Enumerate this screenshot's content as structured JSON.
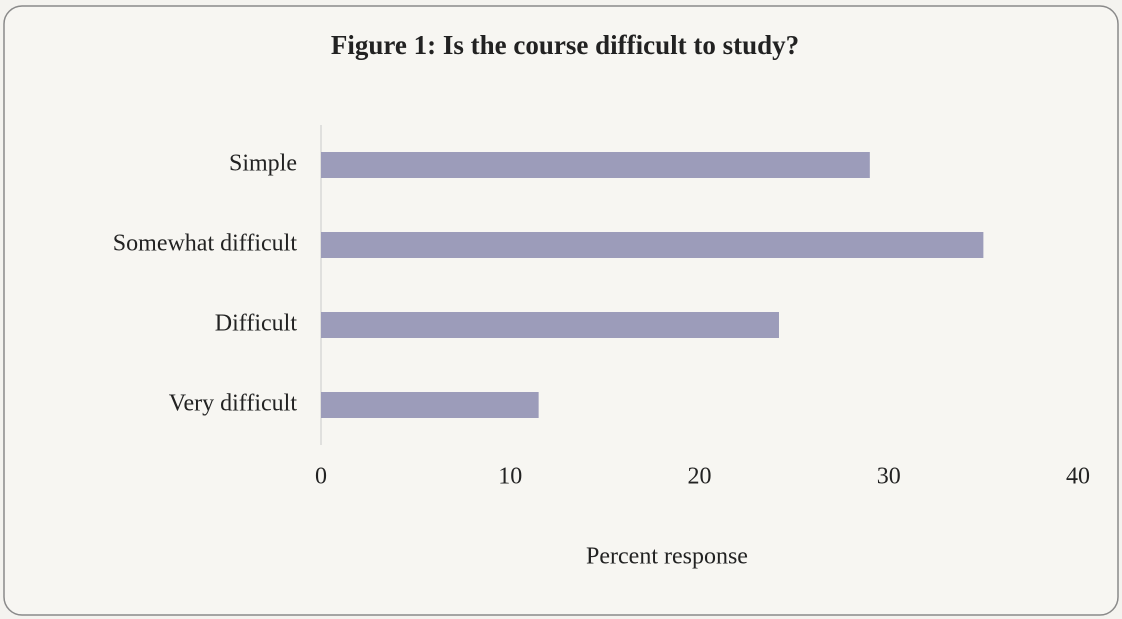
{
  "chart_data": {
    "type": "bar",
    "orientation": "horizontal",
    "title": "Figure 1: Is the course difficult to study?",
    "xlabel": "Percent response",
    "categories": [
      "Simple",
      "Somewhat difficult",
      "Difficult",
      "Very difficult"
    ],
    "values": [
      29,
      35,
      24.2,
      11.5
    ],
    "color": "#9c9cba",
    "xlim": [
      0,
      40
    ],
    "xticks": [
      0,
      10,
      20,
      30,
      40
    ],
    "grid": false
  }
}
